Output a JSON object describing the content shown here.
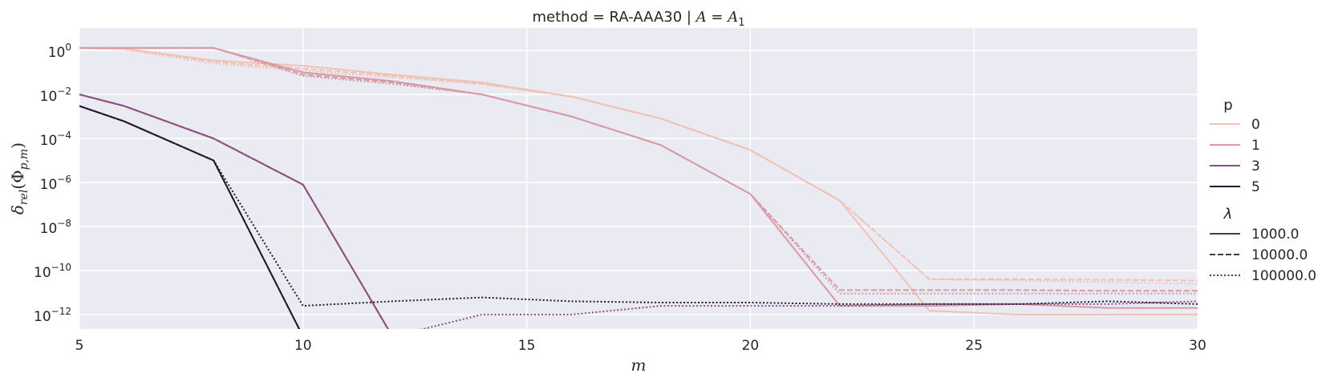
{
  "chart_data": {
    "type": "line",
    "title": "method = RA-AAA30 | A = A₁",
    "title_parts": {
      "prefix": "method = RA-AAA30 | ",
      "a": "A",
      "eq": " = ",
      "a1": "A",
      "sub": "1"
    },
    "xlabel": "m",
    "ylabel": "δ_rel(Φ_p,m)",
    "ylabel_parts": {
      "delta": "δ",
      "rel": "rel",
      "phi": "(Φ",
      "pm": "p,m",
      "close": ")"
    },
    "xlim": [
      5,
      30
    ],
    "ylim": [
      1e-12,
      20
    ],
    "yscale": "log",
    "xticks": [
      5,
      10,
      15,
      20,
      25,
      30
    ],
    "xtick_labels": [
      "5",
      "10",
      "15",
      "20",
      "25",
      "30"
    ],
    "yticks_exp": [
      0,
      -2,
      -4,
      -6,
      -8,
      -10,
      -12
    ],
    "ytick_base": "10",
    "ytick_exp_labels": [
      "0",
      "−2",
      "−4",
      "−6",
      "−8",
      "−10",
      "−12"
    ],
    "grid": true,
    "background": "#eaeaf2",
    "legend_position": "right",
    "legend": {
      "hue_title": "p",
      "hue_entries": [
        {
          "label": "0",
          "color": "#f0c2b6"
        },
        {
          "label": "1",
          "color": "#d89aa6"
        },
        {
          "label": "3",
          "color": "#8e4f82"
        },
        {
          "label": "5",
          "color": "#22182f"
        }
      ],
      "style_title": "λ",
      "style_entries": [
        {
          "label": "1000.0",
          "dash": "solid"
        },
        {
          "label": "10000.0",
          "dash": "dashed"
        },
        {
          "label": "100000.0",
          "dash": "dotted"
        }
      ]
    },
    "x": [
      5,
      6,
      8,
      10,
      12,
      14,
      16,
      18,
      20,
      22,
      24,
      26,
      28,
      30
    ],
    "series": [
      {
        "p": "0",
        "lambda": "1000.0",
        "color": "#f0c2b6",
        "dash": "solid",
        "values": [
          1.3,
          1.2,
          0.35,
          0.2,
          0.08,
          0.035,
          0.008,
          0.0008,
          3e-05,
          1.5e-07,
          1.5e-12,
          1e-12,
          1e-12,
          1e-12
        ]
      },
      {
        "p": "0",
        "lambda": "10000.0",
        "color": "#f0c2b6",
        "dash": "dashed",
        "values": [
          1.3,
          1.2,
          0.3,
          0.15,
          0.07,
          0.03,
          0.008,
          0.0008,
          3e-05,
          1.5e-07,
          4e-11,
          4e-11,
          3.8e-11,
          3.5e-11
        ]
      },
      {
        "p": "0",
        "lambda": "100000.0",
        "color": "#f0c2b6",
        "dash": "dotted",
        "values": [
          1.3,
          1.1,
          0.25,
          0.12,
          0.06,
          0.03,
          0.008,
          0.0008,
          3e-05,
          1.5e-07,
          4e-11,
          3.5e-11,
          3e-11,
          2.5e-11
        ]
      },
      {
        "p": "1",
        "lambda": "1000.0",
        "color": "#d89aa6",
        "dash": "solid",
        "values": [
          1.3,
          1.3,
          1.3,
          0.1,
          0.04,
          0.01,
          0.001,
          5e-05,
          3e-07,
          2.5e-12,
          2.5e-12,
          3e-12,
          2e-12,
          2e-12
        ]
      },
      {
        "p": "1",
        "lambda": "10000.0",
        "color": "#d89aa6",
        "dash": "dashed",
        "values": [
          1.3,
          1.3,
          1.3,
          0.08,
          0.035,
          0.01,
          0.001,
          5e-05,
          3e-07,
          1.3e-11,
          1.3e-11,
          1.3e-11,
          1.2e-11,
          1.2e-11
        ]
      },
      {
        "p": "1",
        "lambda": "100000.0",
        "color": "#d89aa6",
        "dash": "dotted",
        "values": [
          1.3,
          1.3,
          1.3,
          0.07,
          0.03,
          0.01,
          0.001,
          5e-05,
          3e-07,
          9e-12,
          9e-12,
          9e-12,
          9e-12,
          9e-12
        ]
      },
      {
        "p": "3",
        "lambda": "1000.0",
        "color": "#8e4f82",
        "dash": "solid",
        "values": [
          0.01,
          0.003,
          0.0001,
          8e-07,
          1e-13,
          null,
          null,
          null,
          null,
          null,
          null,
          null,
          null,
          null
        ]
      },
      {
        "p": "3",
        "lambda": "10000.0",
        "color": "#8e4f82",
        "dash": "dashed",
        "values": [
          0.01,
          0.003,
          0.0001,
          8e-07,
          1e-13,
          null,
          null,
          null,
          null,
          null,
          null,
          null,
          null,
          null
        ]
      },
      {
        "p": "3",
        "lambda": "100000.0",
        "color": "#8e4f82",
        "dash": "dotted",
        "values": [
          0.01,
          0.003,
          0.0001,
          8e-07,
          1e-13,
          1e-12,
          1e-12,
          2.5e-12,
          2.5e-12,
          2.5e-12,
          3e-12,
          3e-12,
          3e-12,
          4e-12
        ]
      },
      {
        "p": "5",
        "lambda": "1000.0",
        "color": "#22182f",
        "dash": "solid",
        "values": [
          0.003,
          0.0006,
          1e-05,
          1e-13,
          null,
          null,
          null,
          null,
          null,
          null,
          null,
          null,
          null,
          null
        ]
      },
      {
        "p": "5",
        "lambda": "10000.0",
        "color": "#22182f",
        "dash": "dashed",
        "values": [
          0.003,
          0.0006,
          1e-05,
          1e-13,
          null,
          null,
          null,
          null,
          null,
          null,
          null,
          null,
          null,
          null
        ]
      },
      {
        "p": "5",
        "lambda": "100000.0",
        "color": "#22182f",
        "dash": "dotted",
        "values": [
          0.003,
          0.0006,
          1e-05,
          2.5e-12,
          4e-12,
          6e-12,
          4e-12,
          3.5e-12,
          3.5e-12,
          3e-12,
          3e-12,
          3e-12,
          4e-12,
          3e-12
        ]
      }
    ]
  }
}
